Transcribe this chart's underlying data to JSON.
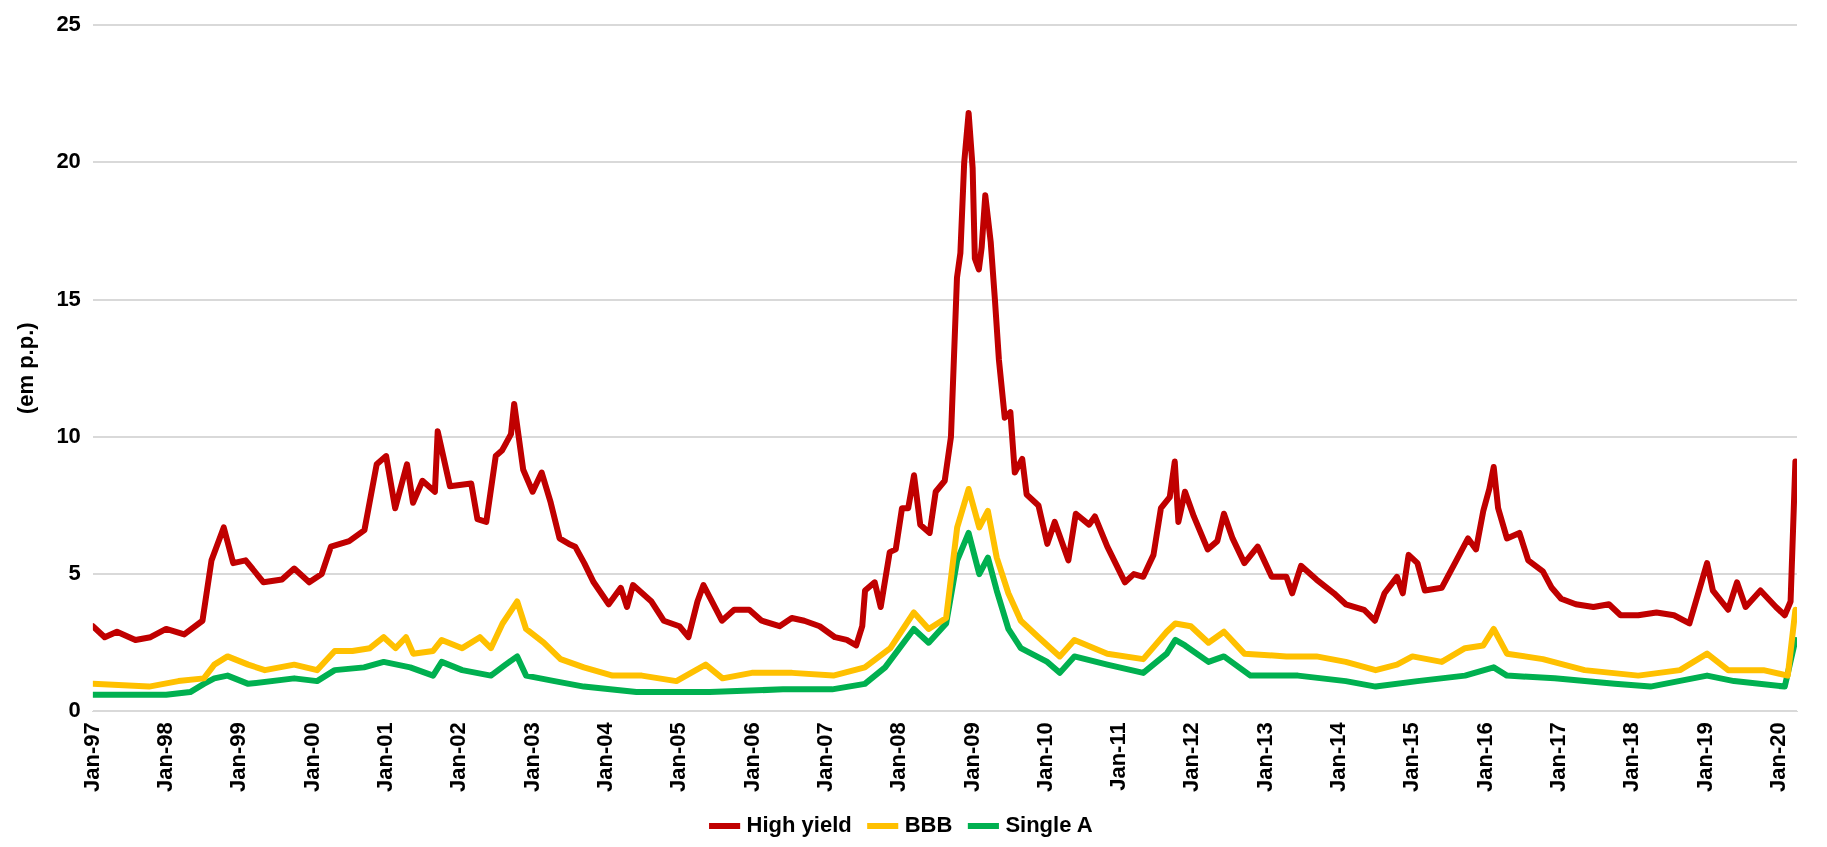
{
  "chart_data": {
    "type": "line",
    "ylabel": "(em p.p.)",
    "xlim": [
      "1997-01-01",
      "2020-03-31"
    ],
    "ylim": [
      0,
      25
    ],
    "yticks": [
      0,
      5,
      10,
      15,
      20,
      25
    ],
    "xticks": [
      {
        "value": "1997-01-01",
        "label": "Jan-97"
      },
      {
        "value": "1998-01-01",
        "label": "Jan-98"
      },
      {
        "value": "1999-01-01",
        "label": "Jan-99"
      },
      {
        "value": "2000-01-01",
        "label": "Jan-00"
      },
      {
        "value": "2001-01-01",
        "label": "Jan-01"
      },
      {
        "value": "2002-01-01",
        "label": "Jan-02"
      },
      {
        "value": "2003-01-01",
        "label": "Jan-03"
      },
      {
        "value": "2004-01-01",
        "label": "Jan-04"
      },
      {
        "value": "2005-01-01",
        "label": "Jan-05"
      },
      {
        "value": "2006-01-01",
        "label": "Jan-06"
      },
      {
        "value": "2007-01-01",
        "label": "Jan-07"
      },
      {
        "value": "2008-01-01",
        "label": "Jan-08"
      },
      {
        "value": "2009-01-01",
        "label": "Jan-09"
      },
      {
        "value": "2010-01-01",
        "label": "Jan-10"
      },
      {
        "value": "2011-01-01",
        "label": "Jan-11"
      },
      {
        "value": "2012-01-01",
        "label": "Jan-12"
      },
      {
        "value": "2013-01-01",
        "label": "Jan-13"
      },
      {
        "value": "2014-01-01",
        "label": "Jan-14"
      },
      {
        "value": "2015-01-01",
        "label": "Jan-15"
      },
      {
        "value": "2016-01-01",
        "label": "Jan-16"
      },
      {
        "value": "2017-01-01",
        "label": "Jan-17"
      },
      {
        "value": "2018-01-01",
        "label": "Jan-18"
      },
      {
        "value": "2019-01-01",
        "label": "Jan-19"
      },
      {
        "value": "2020-01-01",
        "label": "Jan-20"
      }
    ],
    "grid": "y",
    "legend": "bottom",
    "marker": "none",
    "line_style": "solid",
    "series": [
      {
        "name": "High yield",
        "color": "#c00000",
        "x": [
          "1997-01-01",
          "1997-03-01",
          "1997-05-01",
          "1997-08-01",
          "1997-10-15",
          "1998-01-01",
          "1998-04-01",
          "1998-07-01",
          "1998-08-15",
          "1998-10-15",
          "1998-12-01",
          "1999-02-01",
          "1999-05-01",
          "1999-08-01",
          "1999-10-01",
          "1999-12-15",
          "2000-02-15",
          "2000-04-01",
          "2000-07-01",
          "2000-09-15",
          "2000-11-15",
          "2001-01-01",
          "2001-02-15",
          "2001-04-15",
          "2001-05-15",
          "2001-07-01",
          "2001-09-01",
          "2001-09-15",
          "2001-11-15",
          "2002-03-01",
          "2002-04-01",
          "2002-05-15",
          "2002-07-01",
          "2002-08-01",
          "2002-09-15",
          "2002-10-01",
          "2002-11-15",
          "2003-01-01",
          "2003-02-15",
          "2003-04-01",
          "2003-05-15",
          "2003-07-01",
          "2003-08-01",
          "2003-09-15",
          "2003-11-01",
          "2004-01-15",
          "2004-03-15",
          "2004-04-15",
          "2004-05-15",
          "2004-08-15",
          "2004-10-15",
          "2005-01-01",
          "2005-02-15",
          "2005-04-01",
          "2005-05-01",
          "2005-08-01",
          "2005-10-01",
          "2005-12-15",
          "2006-02-15",
          "2006-05-15",
          "2006-07-15",
          "2006-09-15",
          "2006-12-01",
          "2007-02-15",
          "2007-04-15",
          "2007-06-01",
          "2007-07-01",
          "2007-07-15",
          "2007-09-01",
          "2007-10-01",
          "2007-11-15",
          "2007-12-15",
          "2008-01-15",
          "2008-02-15",
          "2008-03-15",
          "2008-04-15",
          "2008-06-01",
          "2008-07-01",
          "2008-08-15",
          "2008-09-15",
          "2008-10-15",
          "2008-11-01",
          "2008-11-20",
          "2008-12-12",
          "2009-01-01",
          "2009-01-12",
          "2009-02-01",
          "2009-02-15",
          "2009-03-05",
          "2009-04-01",
          "2009-04-22",
          "2009-05-12",
          "2009-06-10",
          "2009-07-08",
          "2009-07-30",
          "2009-09-05",
          "2009-09-27",
          "2009-11-25",
          "2010-01-08",
          "2010-02-14",
          "2010-04-23",
          "2010-05-30",
          "2010-08-04",
          "2010-09-02",
          "2010-11-03",
          "2011-01-30",
          "2011-03-15",
          "2011-05-01",
          "2011-06-21",
          "2011-07-28",
          "2011-09-10",
          "2011-10-05",
          "2011-10-23",
          "2011-11-25",
          "2012-01-08",
          "2012-03-17",
          "2012-05-04",
          "2012-06-06",
          "2012-07-19",
          "2012-09-16",
          "2012-11-21",
          "2013-01-30",
          "2013-04-13",
          "2013-05-12",
          "2013-06-25",
          "2013-09-10",
          "2013-12-06",
          "2014-02-03",
          "2014-05-05",
          "2014-06-28",
          "2014-08-15",
          "2014-10-16",
          "2014-11-14",
          "2014-12-13",
          "2015-01-26",
          "2015-03-04",
          "2015-05-27",
          "2015-08-08",
          "2015-10-05",
          "2015-11-14",
          "2015-12-20",
          "2016-01-19",
          "2016-02-10",
          "2016-03-03",
          "2016-04-16",
          "2016-06-17",
          "2016-07-31",
          "2016-10-12",
          "2016-11-25",
          "2017-01-11",
          "2017-03-25",
          "2017-06-21",
          "2017-09-06",
          "2017-11-03",
          "2018-01-30",
          "2018-05-01",
          "2018-07-27",
          "2018-10-12",
          "2018-11-25",
          "2019-01-08",
          "2019-02-06",
          "2019-04-23",
          "2019-06-06",
          "2019-07-19",
          "2019-10-01",
          "2019-12-17",
          "2020-01-30",
          "2020-02-28",
          "2020-03-23"
        ],
        "values": [
          3.1,
          2.7,
          2.9,
          2.6,
          2.7,
          3.0,
          2.8,
          3.3,
          5.5,
          6.7,
          5.4,
          5.5,
          4.7,
          4.8,
          5.2,
          4.7,
          5.0,
          6.0,
          6.2,
          6.6,
          9.0,
          9.3,
          7.4,
          9.0,
          7.6,
          8.4,
          8.0,
          10.2,
          8.2,
          8.3,
          7.0,
          6.9,
          9.3,
          9.5,
          10.1,
          11.2,
          8.8,
          8.0,
          8.7,
          7.6,
          6.3,
          6.1,
          6.0,
          5.4,
          4.7,
          3.9,
          4.5,
          3.8,
          4.6,
          4.0,
          3.3,
          3.1,
          2.7,
          4.0,
          4.6,
          3.3,
          3.7,
          3.7,
          3.3,
          3.1,
          3.4,
          3.3,
          3.1,
          2.7,
          2.6,
          2.4,
          3.1,
          4.4,
          4.7,
          3.8,
          5.8,
          5.9,
          7.4,
          7.4,
          8.6,
          6.8,
          6.5,
          8.0,
          8.4,
          10.0,
          15.8,
          16.7,
          20.0,
          21.8,
          19.8,
          16.5,
          16.1,
          16.9,
          18.8,
          17.1,
          15.0,
          12.8,
          10.7,
          10.9,
          8.7,
          9.2,
          7.9,
          7.5,
          6.1,
          6.9,
          5.5,
          7.2,
          6.8,
          7.1,
          6.0,
          4.7,
          5.0,
          4.9,
          5.7,
          7.4,
          7.8,
          9.1,
          6.9,
          8.0,
          7.1,
          5.9,
          6.2,
          7.2,
          6.3,
          5.4,
          6.0,
          4.9,
          4.9,
          4.3,
          5.3,
          4.8,
          4.3,
          3.9,
          3.7,
          3.3,
          4.3,
          4.9,
          4.3,
          5.7,
          5.4,
          4.4,
          4.5,
          5.5,
          6.3,
          5.9,
          7.3,
          8.1,
          8.9,
          7.4,
          6.3,
          6.5,
          5.5,
          5.1,
          4.5,
          4.1,
          3.9,
          3.8,
          3.9,
          3.5,
          3.5,
          3.6,
          3.5,
          3.2,
          4.3,
          5.4,
          4.4,
          3.7,
          4.7,
          3.8,
          4.4,
          3.8,
          3.5,
          4.0,
          9.1
        ]
      },
      {
        "name": "BBB",
        "color": "#ffc000",
        "x": [
          "1997-01-01",
          "1997-10-08",
          "1998-03-03",
          "1998-07-08",
          "1998-08-29",
          "1998-11-03",
          "1999-02-14",
          "1999-05-08",
          "1999-10-01",
          "2000-01-23",
          "2000-04-20",
          "2000-07-17",
          "2000-10-12",
          "2000-12-20",
          "2001-02-17",
          "2001-04-10",
          "2001-05-16",
          "2001-08-23",
          "2001-10-05",
          "2002-01-15",
          "2002-04-13",
          "2002-06-07",
          "2002-08-04",
          "2002-10-16",
          "2002-11-29",
          "2003-02-25",
          "2003-05-20",
          "2003-09-13",
          "2004-02-03",
          "2004-06-28",
          "2004-12-17",
          "2005-05-12",
          "2005-08-04",
          "2005-12-28",
          "2006-07-17",
          "2007-02-07",
          "2007-07-14",
          "2007-11-18",
          "2008-03-14",
          "2008-05-27",
          "2008-08-22",
          "2008-10-16",
          "2008-12-12",
          "2009-02-03",
          "2009-03-18",
          "2009-05-01",
          "2009-06-28",
          "2009-08-29",
          "2009-11-25",
          "2010-03-11",
          "2010-05-23",
          "2010-11-03",
          "2011-05-01",
          "2011-08-26",
          "2011-10-08",
          "2011-12-24",
          "2012-03-21",
          "2012-06-06",
          "2012-09-16",
          "2013-04-13",
          "2013-09-10",
          "2014-02-03",
          "2014-07-02",
          "2014-10-16",
          "2015-01-01",
          "2015-05-27",
          "2015-09-20",
          "2015-12-20",
          "2016-02-10",
          "2016-04-16",
          "2016-10-12",
          "2017-05-08",
          "2018-01-30",
          "2018-08-26",
          "2019-01-08",
          "2019-04-23",
          "2019-10-16",
          "2020-02-14",
          "2020-03-23"
        ],
        "values": [
          1.0,
          0.9,
          1.1,
          1.2,
          1.7,
          2.0,
          1.7,
          1.5,
          1.7,
          1.5,
          2.2,
          2.2,
          2.3,
          2.7,
          2.3,
          2.7,
          2.1,
          2.2,
          2.6,
          2.3,
          2.7,
          2.3,
          3.2,
          4.0,
          3.0,
          2.5,
          1.9,
          1.6,
          1.3,
          1.3,
          1.1,
          1.7,
          1.2,
          1.4,
          1.4,
          1.3,
          1.6,
          2.3,
          3.6,
          3.0,
          3.4,
          6.7,
          8.1,
          6.7,
          7.3,
          5.6,
          4.3,
          3.3,
          2.7,
          2.0,
          2.6,
          2.1,
          1.9,
          2.9,
          3.2,
          3.1,
          2.5,
          2.9,
          2.1,
          2.0,
          2.0,
          1.8,
          1.5,
          1.7,
          2.0,
          1.8,
          2.3,
          2.4,
          3.0,
          2.1,
          1.9,
          1.5,
          1.3,
          1.5,
          2.1,
          1.5,
          1.5,
          1.3,
          3.7
        ]
      },
      {
        "name": "Single A",
        "color": "#00b050",
        "x": [
          "1997-01-01",
          "1997-06-01",
          "1998-01-01",
          "1998-05-01",
          "1998-07-08",
          "1998-08-29",
          "1998-11-03",
          "1999-02-14",
          "1999-10-01",
          "2000-01-23",
          "2000-04-20",
          "2000-09-13",
          "2000-12-20",
          "2001-05-01",
          "2001-08-23",
          "2001-10-05",
          "2002-01-15",
          "2002-06-07",
          "2002-08-19",
          "2002-10-16",
          "2002-11-29",
          "2003-04-20",
          "2003-09-13",
          "2004-06-01",
          "2005-06-01",
          "2006-06-01",
          "2007-02-01",
          "2007-07-14",
          "2007-10-23",
          "2008-03-14",
          "2008-05-27",
          "2008-08-22",
          "2008-10-16",
          "2008-12-12",
          "2009-02-03",
          "2009-03-18",
          "2009-05-01",
          "2009-06-28",
          "2009-08-29",
          "2010-01-08",
          "2010-03-11",
          "2010-05-23",
          "2010-11-03",
          "2011-05-01",
          "2011-08-26",
          "2011-10-08",
          "2011-11-25",
          "2012-03-21",
          "2012-06-06",
          "2012-10-16",
          "2013-06-10",
          "2014-02-03",
          "2014-07-02",
          "2015-01-26",
          "2015-09-20",
          "2016-02-10",
          "2016-04-16",
          "2016-12-10",
          "2017-10-05",
          "2018-04-01",
          "2019-01-08",
          "2019-05-22",
          "2020-01-30",
          "2020-03-23"
        ],
        "values": [
          0.6,
          0.6,
          0.6,
          0.7,
          1.0,
          1.2,
          1.3,
          1.0,
          1.2,
          1.1,
          1.5,
          1.6,
          1.8,
          1.6,
          1.3,
          1.8,
          1.5,
          1.3,
          1.7,
          2.0,
          1.3,
          1.1,
          0.9,
          0.7,
          0.7,
          0.8,
          0.8,
          1.0,
          1.6,
          3.0,
          2.5,
          3.2,
          5.5,
          6.5,
          5.0,
          5.6,
          4.4,
          3.0,
          2.3,
          1.8,
          1.4,
          2.0,
          1.7,
          1.4,
          2.1,
          2.6,
          2.4,
          1.8,
          2.0,
          1.3,
          1.3,
          1.1,
          0.9,
          1.1,
          1.3,
          1.6,
          1.3,
          1.2,
          1.0,
          0.9,
          1.3,
          1.1,
          0.9,
          2.6
        ]
      }
    ]
  }
}
